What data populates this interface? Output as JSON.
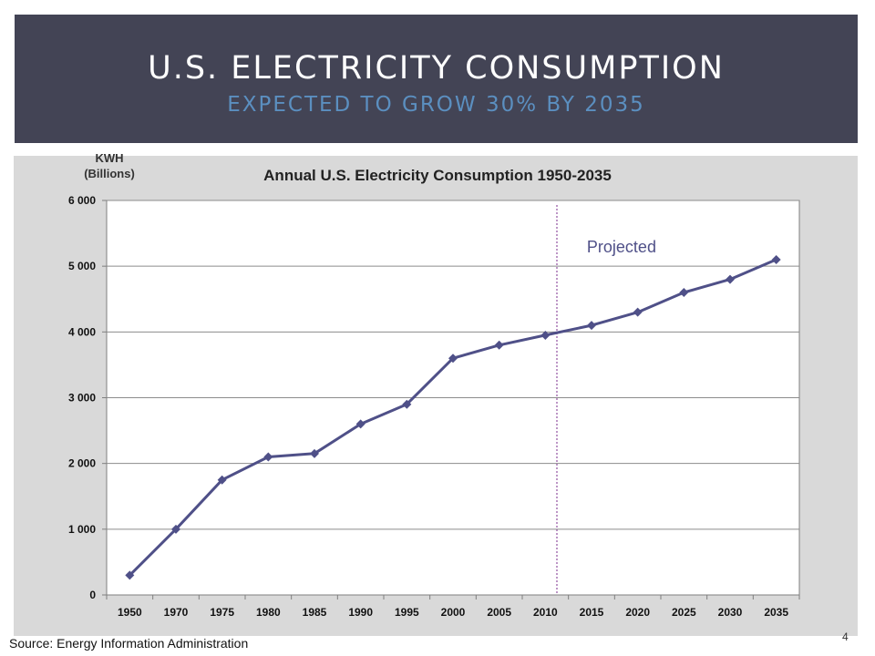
{
  "slide": {
    "title": "U.S. ELECTRICITY CONSUMPTION",
    "subtitle": "EXPECTED TO GROW 30% BY 2035",
    "source": "Source: Energy Information Administration",
    "page_number": "4"
  },
  "colors": {
    "header_bg": "#434455",
    "title": "#ffffff",
    "subtitle": "#5b8fc0",
    "panel_bg": "#d9d9d9",
    "line": "#4f5088",
    "gridline": "#8c8c8c",
    "divider": "#7b2d8e",
    "annotation": "#4f5088"
  },
  "chart_data": {
    "type": "line",
    "title": "Annual U.S. Electricity Consumption 1950-2035",
    "ylabel_line1": "KWH",
    "ylabel_line2": "(Billions)",
    "xlabel": "",
    "categories": [
      "1950",
      "1970",
      "1975",
      "1980",
      "1985",
      "1990",
      "1995",
      "2000",
      "2005",
      "2010",
      "2015",
      "2020",
      "2025",
      "2030",
      "2035"
    ],
    "series": [
      {
        "values": [
          300,
          1000,
          1750,
          2100,
          2150,
          2600,
          2900,
          3600,
          3800,
          3950,
          4100,
          4300,
          4600,
          4800,
          5100
        ]
      }
    ],
    "ylim": [
      0,
      6000
    ],
    "yticks": [
      0,
      1000,
      2000,
      3000,
      4000,
      5000,
      6000
    ],
    "ytick_labels": [
      "0",
      "1 000",
      "2 000",
      "3 000",
      "4 000",
      "5 000",
      "6 000"
    ],
    "grid": true,
    "legend": "none",
    "projection_start": "2010",
    "annotation": "Projected"
  }
}
